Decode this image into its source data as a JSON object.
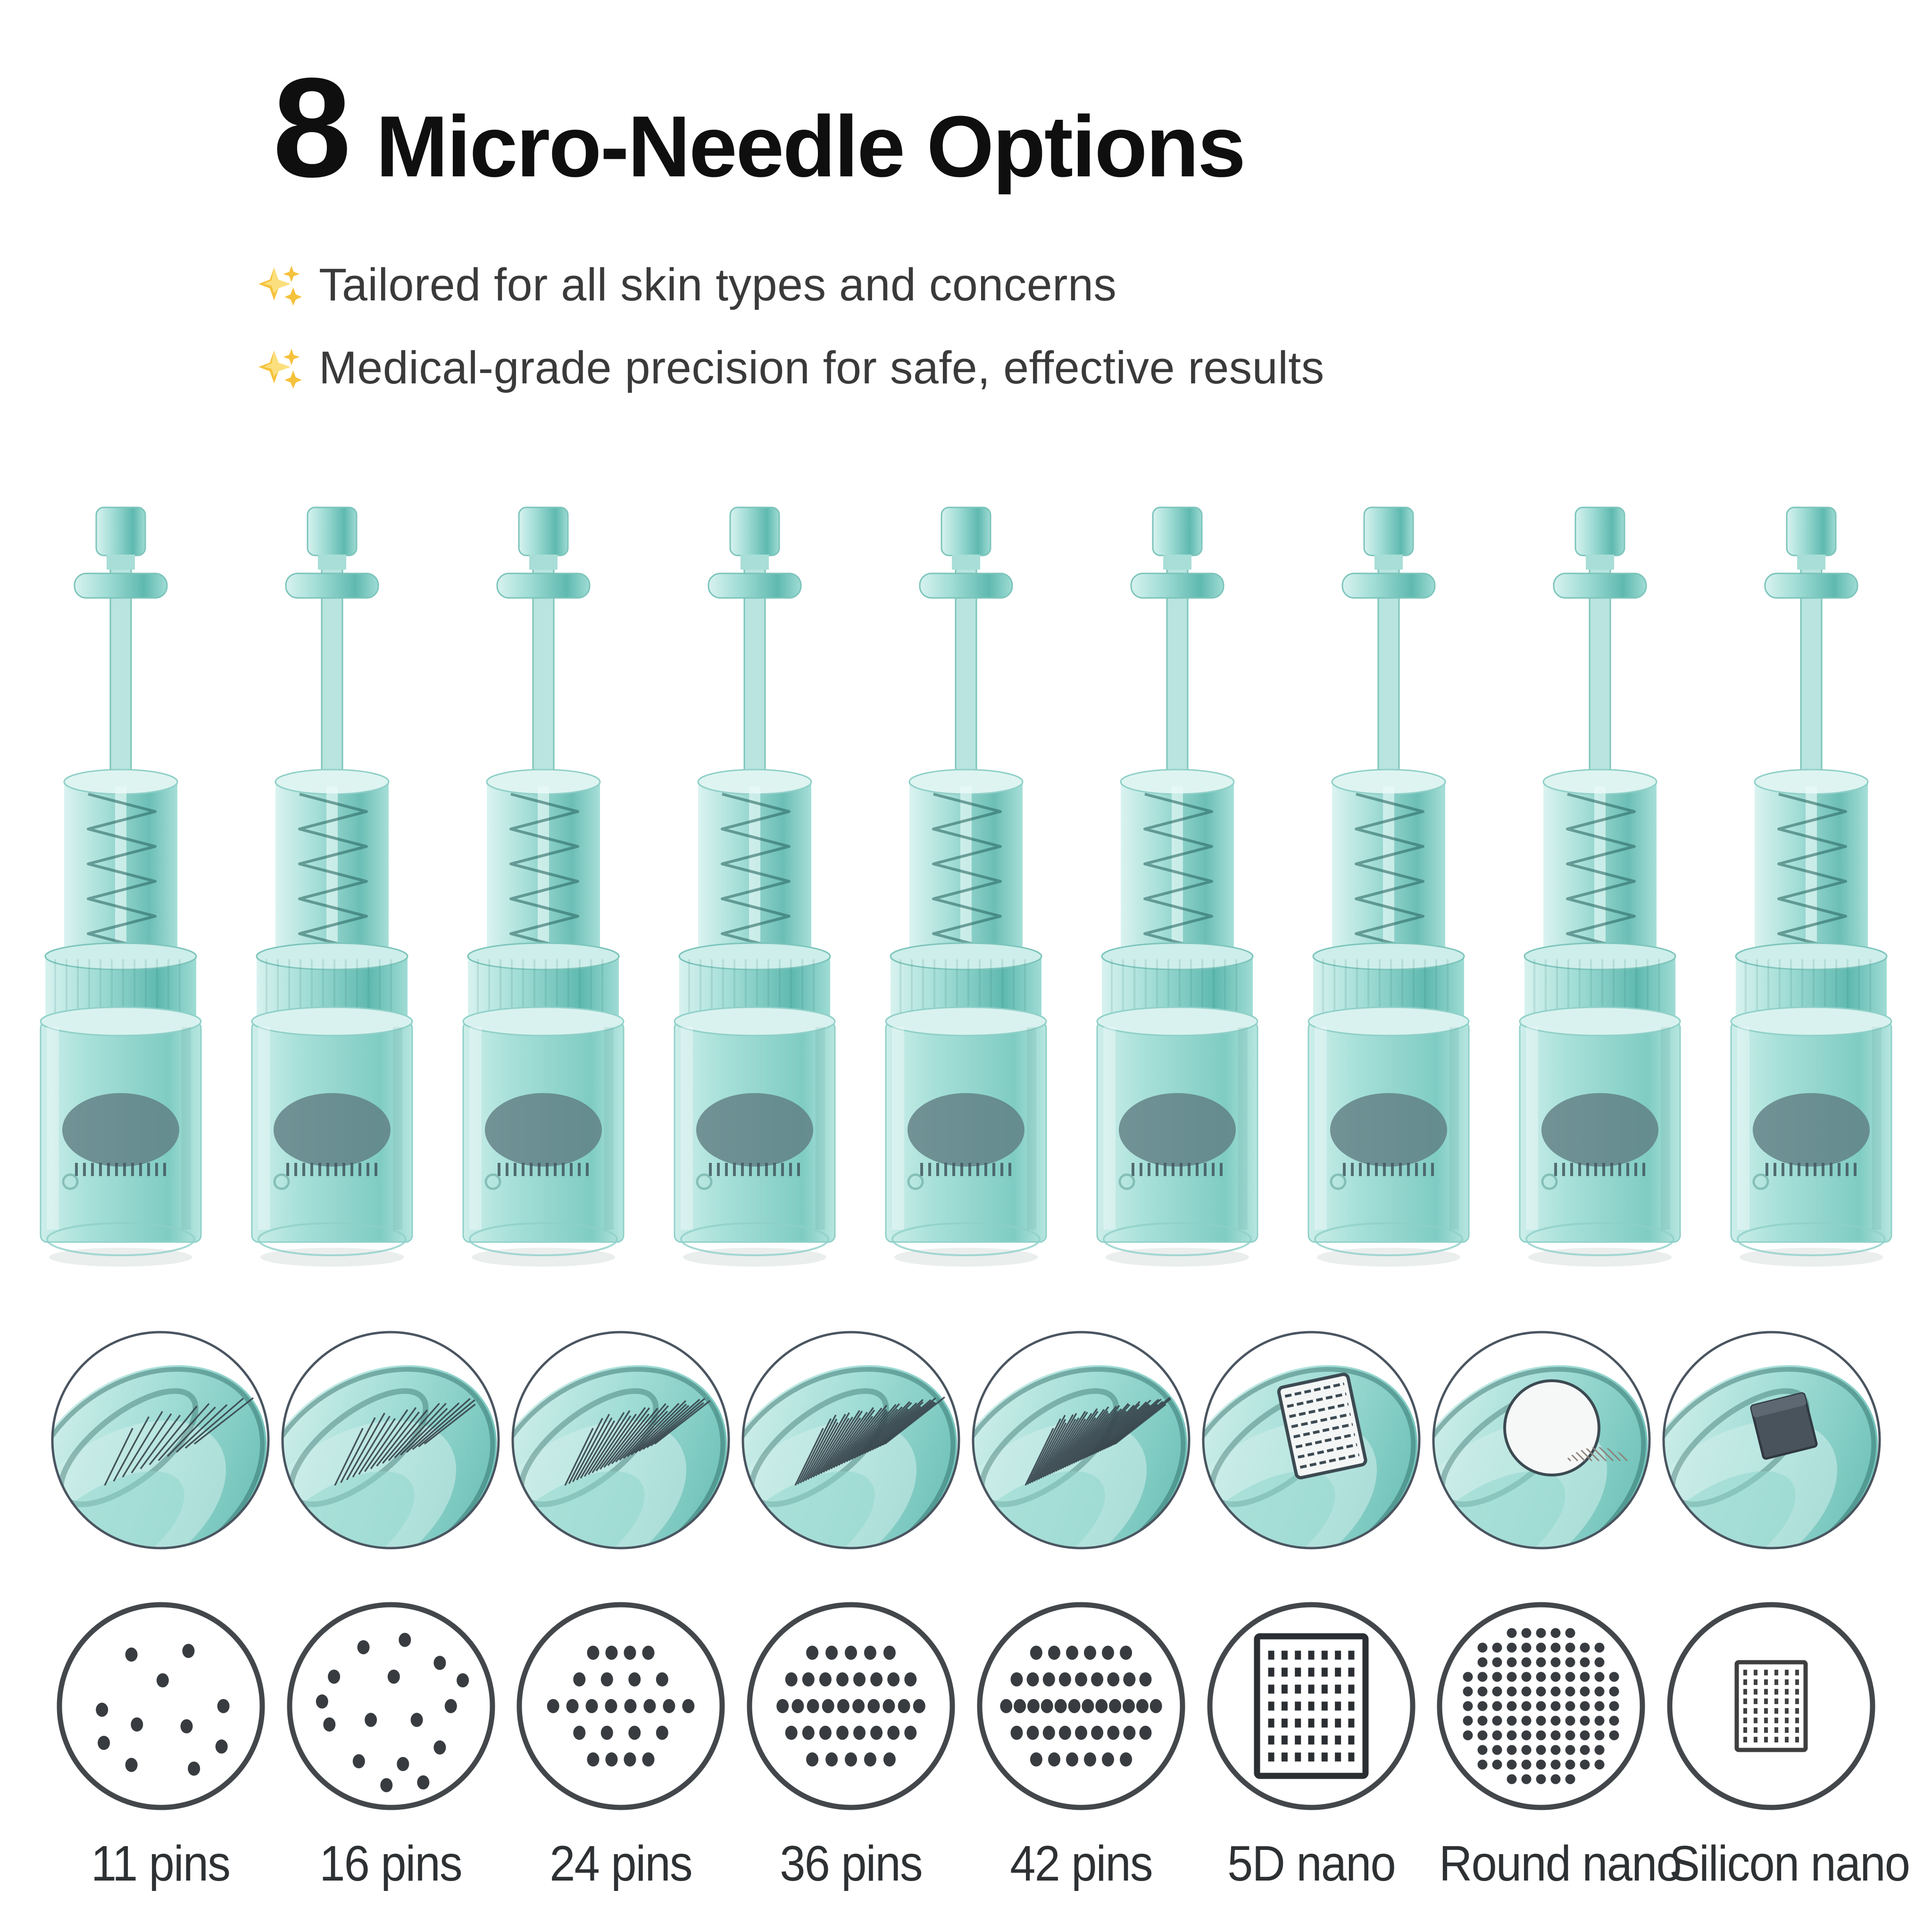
{
  "header": {
    "count": "8",
    "title": "Micro-Needle Options",
    "bullets": [
      {
        "icon": "sparkles-icon",
        "text": "Tailored for all skin types and concerns"
      },
      {
        "icon": "sparkles-icon",
        "text": "Medical-grade precision for safe, effective results"
      }
    ]
  },
  "colors": {
    "background": "#ffffff",
    "title_text": "#0f0f0f",
    "bullet_text": "#3a3a3a",
    "sparkle_gold": "#f5c23c",
    "sparkle_gold_light": "#fbdf7e",
    "teal_light": "#d7f2ef",
    "teal_mid": "#9fdcd5",
    "teal_deep": "#5fb9af",
    "teal_dark": "#2f7d76",
    "teal_stroke": "#7cc4bb",
    "head_gray": "#5d7a80",
    "photo_ring": "#4a5560",
    "needle_line": "#3a474f",
    "diagram_outline": "#43474b",
    "diagram_dot": "#383c40",
    "label_text": "#2e3133"
  },
  "cartridge_row": {
    "count": 9,
    "description": "translucent teal micro-needle pen cartridges"
  },
  "options": [
    {
      "label": "11 pins",
      "tip": "needles",
      "needles": 11,
      "pattern": {
        "type": "scatter",
        "dots": [
          [
            -0.32,
            -0.56
          ],
          [
            0.3,
            -0.6
          ],
          [
            0.02,
            -0.28
          ],
          [
            -0.64,
            0.04
          ],
          [
            0.68,
            0.0
          ],
          [
            -0.26,
            0.2
          ],
          [
            0.28,
            0.22
          ],
          [
            0.66,
            0.44
          ],
          [
            -0.62,
            0.4
          ],
          [
            -0.32,
            0.64
          ],
          [
            0.36,
            0.68
          ]
        ]
      }
    },
    {
      "label": "16 pins",
      "tip": "needles",
      "needles": 16,
      "pattern": {
        "type": "scatter",
        "dots": [
          [
            -0.3,
            -0.64
          ],
          [
            0.15,
            -0.72
          ],
          [
            0.53,
            -0.47
          ],
          [
            -0.62,
            -0.32
          ],
          [
            0.03,
            -0.32
          ],
          [
            0.78,
            -0.28
          ],
          [
            0.65,
            0.0
          ],
          [
            -0.67,
            0.2
          ],
          [
            -0.22,
            0.15
          ],
          [
            0.28,
            0.15
          ],
          [
            -0.75,
            -0.05
          ],
          [
            0.53,
            0.45
          ],
          [
            -0.35,
            0.6
          ],
          [
            0.13,
            0.63
          ],
          [
            -0.05,
            0.86
          ],
          [
            0.35,
            0.83
          ]
        ]
      }
    },
    {
      "label": "24 pins",
      "tip": "needles",
      "needles": 24,
      "pattern": {
        "type": "rows",
        "rows": [
          4,
          4,
          8,
          4,
          4
        ],
        "spacings": [
          0.2,
          0.3,
          0.21,
          0.3,
          0.2
        ]
      }
    },
    {
      "label": "36 pins",
      "tip": "needles",
      "needles": 36,
      "pattern": {
        "type": "rows",
        "rows": [
          5,
          8,
          10,
          8,
          5
        ],
        "spacings": [
          0.21,
          0.185,
          0.165,
          0.185,
          0.21
        ]
      }
    },
    {
      "label": "42 pins",
      "tip": "needles",
      "needles": 42,
      "pattern": {
        "type": "rows",
        "rows": [
          6,
          9,
          12,
          9,
          6
        ],
        "spacings": [
          0.195,
          0.175,
          0.148,
          0.175,
          0.195
        ]
      }
    },
    {
      "label": "5D nano",
      "tip": "plate",
      "pattern": {
        "type": "rect-grid",
        "cols": 7,
        "rows": 7
      }
    },
    {
      "label": "Round nano",
      "tip": "disc",
      "pattern": {
        "type": "round-grid",
        "spacing": 31
      }
    },
    {
      "label": "Silicon nano",
      "tip": "chip",
      "pattern": {
        "type": "chip-grid",
        "cols": 6,
        "rows": 8
      }
    }
  ]
}
